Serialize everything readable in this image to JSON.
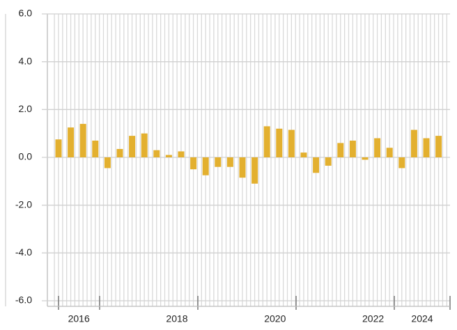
{
  "chart_data": {
    "type": "bar",
    "categories": [
      null,
      null,
      "2016",
      null,
      null,
      null,
      null,
      null,
      null,
      null,
      "2018",
      null,
      null,
      null,
      null,
      null,
      null,
      null,
      "2020",
      null,
      null,
      null,
      null,
      null,
      null,
      null,
      "2022",
      null,
      null,
      null,
      "2024",
      null
    ],
    "values": [
      0.75,
      1.25,
      1.4,
      0.7,
      -0.45,
      0.35,
      0.9,
      1.0,
      0.3,
      0.1,
      0.25,
      -0.5,
      -0.75,
      -0.4,
      -0.4,
      -0.85,
      -1.1,
      1.3,
      1.2,
      1.15,
      0.2,
      -0.65,
      -0.35,
      0.6,
      0.7,
      -0.1,
      0.8,
      0.4,
      -0.45,
      1.15,
      0.8,
      0.9
    ],
    "color": "#e3b02f",
    "ylim": [
      -6,
      6
    ],
    "yticks": [
      {
        "value": -6,
        "label": "-6.0"
      },
      {
        "value": -4,
        "label": "-4.0"
      },
      {
        "value": -2,
        "label": "-2.0"
      },
      {
        "value": 0,
        "label": "0.0"
      },
      {
        "value": 2,
        "label": "2.0"
      },
      {
        "value": 4,
        "label": "4.0"
      },
      {
        "value": 6,
        "label": "6.0"
      }
    ],
    "grid": true
  }
}
